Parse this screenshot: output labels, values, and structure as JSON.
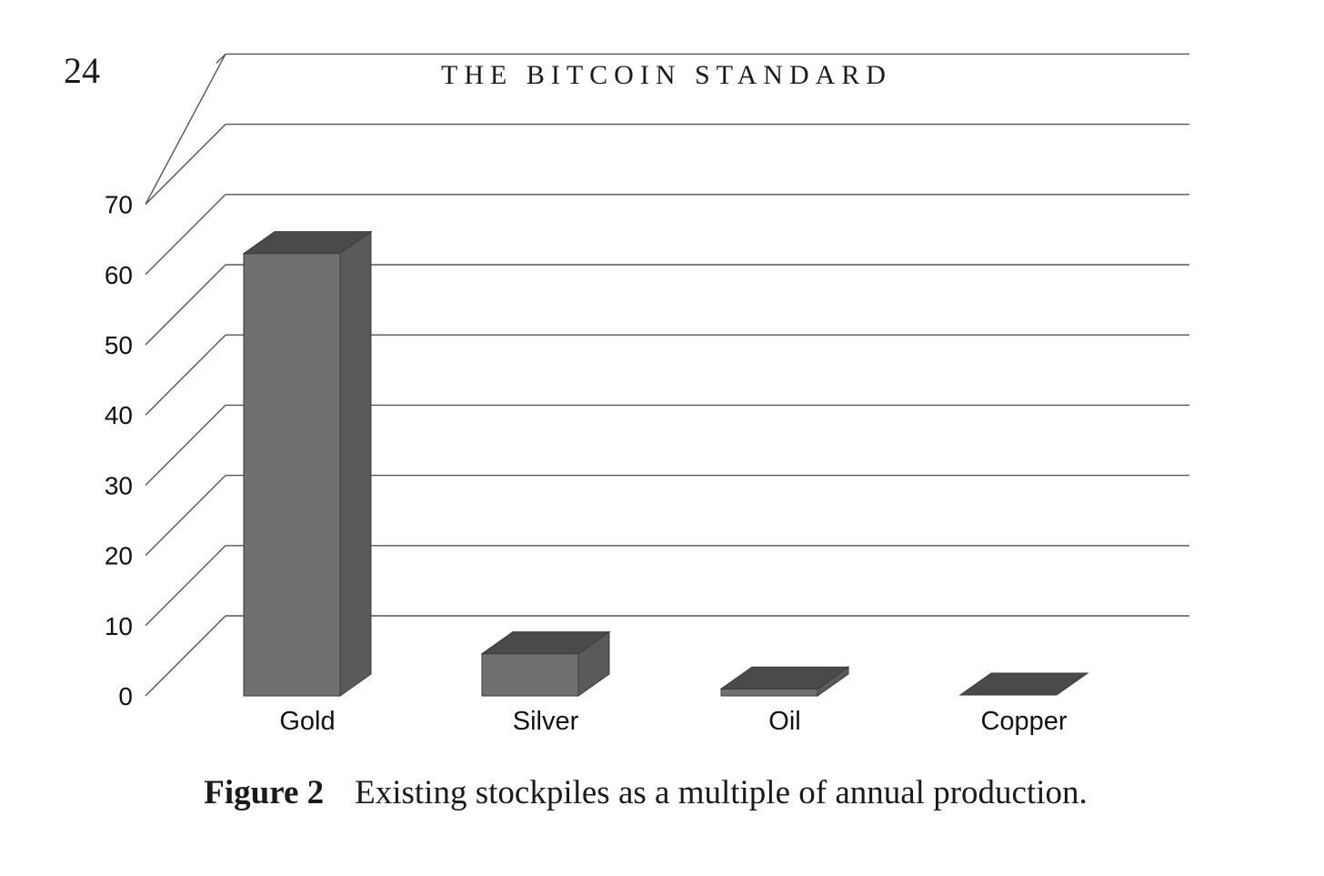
{
  "page": {
    "number": "24",
    "running_head": "THE BITCOIN STANDARD"
  },
  "caption": {
    "label": "Figure 2",
    "text": "Existing stockpiles as a multiple of annual production."
  },
  "chart_data": {
    "type": "bar",
    "style": "3d",
    "categories": [
      "Gold",
      "Silver",
      "Oil",
      "Copper"
    ],
    "values": [
      63,
      6,
      1,
      0
    ],
    "ylim": [
      0,
      70
    ],
    "yticks": [
      "0",
      "10",
      "20",
      "30",
      "40",
      "50",
      "60",
      "70"
    ],
    "grid": true,
    "legend": "none",
    "colors": {
      "bar_front": "#707070",
      "bar_side": "#5a5a5a",
      "bar_top": "#4a4a4a",
      "grid": "#555555"
    }
  }
}
